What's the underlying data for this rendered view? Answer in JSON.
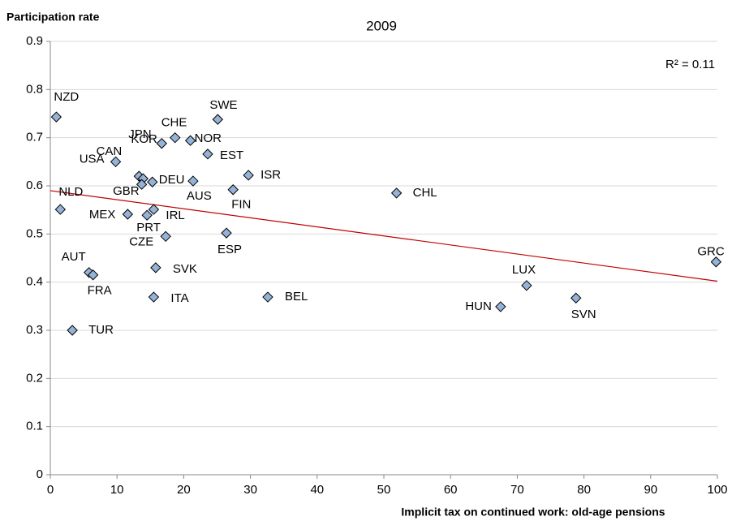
{
  "chart_data": {
    "type": "scatter",
    "title": "2009",
    "y_label": "Participation rate",
    "x_label": "Implicit tax on continued work: old-age pensions",
    "annotation": "R² = 0.11",
    "labels": [
      "NZD",
      "SWE",
      "CHE",
      "NOR",
      "JPN",
      "EST",
      "USA",
      "KOR",
      "CAN",
      "GBR",
      "DEU",
      "AUS",
      "ISR",
      "FIN",
      "CHL",
      "NLD",
      "MEX",
      "IRL",
      "PRT",
      "CZE",
      "ESP",
      "AUT",
      "FRA",
      "SVK",
      "ITA",
      "BEL",
      "TUR",
      "HUN",
      "LUX",
      "SVN",
      "GRC"
    ],
    "x": [
      0.9,
      25.1,
      18.7,
      21.0,
      16.7,
      23.6,
      9.8,
      13.3,
      13.9,
      13.7,
      15.3,
      21.4,
      29.7,
      27.4,
      51.9,
      1.5,
      11.6,
      15.5,
      14.5,
      17.3,
      26.4,
      5.8,
      6.4,
      15.8,
      15.5,
      32.6,
      3.3,
      67.5,
      71.4,
      78.8,
      99.8
    ],
    "values": [
      0.743,
      0.738,
      0.7,
      0.694,
      0.688,
      0.666,
      0.65,
      0.62,
      0.615,
      0.603,
      0.608,
      0.61,
      0.622,
      0.592,
      0.585,
      0.551,
      0.541,
      0.551,
      0.539,
      0.495,
      0.502,
      0.42,
      0.415,
      0.43,
      0.369,
      0.369,
      0.3,
      0.349,
      0.393,
      0.367,
      0.442
    ],
    "color": "#95b3d7",
    "trendline": {
      "x": [
        0,
        100
      ],
      "values": [
        0.59,
        0.402
      ],
      "color": "#c00000"
    },
    "xlim": [
      0,
      100
    ],
    "xticks": [
      0,
      10,
      20,
      30,
      40,
      50,
      60,
      70,
      80,
      90,
      100
    ],
    "ylim": [
      0,
      0.9
    ],
    "yticks": [
      0,
      0.1,
      0.2,
      0.3,
      0.4,
      0.5,
      0.6,
      0.7,
      0.8,
      0.9
    ],
    "grid": true
  }
}
